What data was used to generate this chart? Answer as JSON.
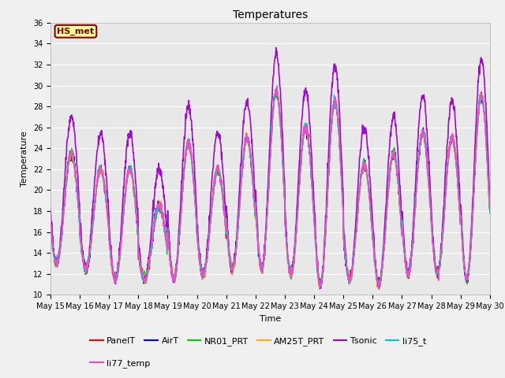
{
  "title": "Temperatures",
  "xlabel": "Time",
  "ylabel": "Temperature",
  "ylim": [
    10,
    36
  ],
  "yticks": [
    10,
    12,
    14,
    16,
    18,
    20,
    22,
    24,
    26,
    28,
    30,
    32,
    34,
    36
  ],
  "xtick_labels": [
    "May 15",
    "May 16",
    "May 17",
    "May 18",
    "May 19",
    "May 20",
    "May 21",
    "May 22",
    "May 23",
    "May 24",
    "May 25",
    "May 26",
    "May 27",
    "May 28",
    "May 29",
    "May 30"
  ],
  "series_names": [
    "PanelT",
    "AirT",
    "NR01_PRT",
    "AM25T_PRT",
    "Tsonic",
    "li75_t",
    "li77_temp"
  ],
  "series_colors": [
    "#ff0000",
    "#0000ff",
    "#00cc00",
    "#ffaa00",
    "#9900cc",
    "#00cccc",
    "#ff44cc"
  ],
  "series_linewidths": [
    1.0,
    1.0,
    1.0,
    1.0,
    1.2,
    1.0,
    1.0
  ],
  "annotation_text": "HS_met",
  "annotation_bg": "#ffff99",
  "annotation_edgecolor": "#8B0000",
  "bg_color": "#e8e8e8",
  "fig_bg_color": "#f0f0f0",
  "grid_color": "#ffffff",
  "title_fontsize": 10,
  "label_fontsize": 8,
  "tick_fontsize": 7,
  "legend_fontsize": 8,
  "points_per_day": 96,
  "num_days": 15,
  "tsonic_boost": 3.5,
  "day_peaks": [
    23.5,
    22.0,
    22.0,
    18.5,
    24.5,
    22.0,
    25.0,
    29.5,
    26.0,
    28.5,
    22.5,
    23.5,
    25.5,
    25.0,
    29.0
  ],
  "day_mins": [
    13.0,
    12.5,
    11.5,
    11.5,
    11.5,
    12.0,
    12.5,
    12.5,
    12.0,
    11.0,
    11.5,
    11.0,
    12.0,
    12.0,
    11.5
  ]
}
